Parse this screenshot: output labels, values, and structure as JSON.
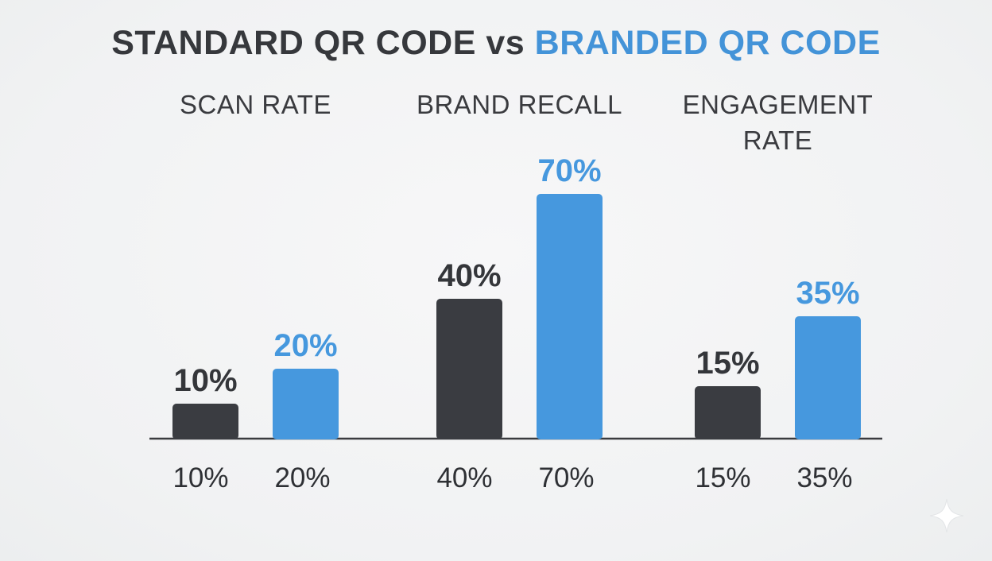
{
  "title": {
    "standard": "STANDARD QR CODE",
    "vs": "vs",
    "branded": "BRANDED QR CODE"
  },
  "colors": {
    "standard": "#3a3c41",
    "branded": "#4698de",
    "axis": "#3a3b3f",
    "text": "#3a3b3f"
  },
  "chart_data": {
    "type": "bar",
    "title": "STANDARD QR CODE vs BRANDED QR CODE",
    "categories": [
      "SCAN RATE",
      "BRAND RECALL",
      "ENGAGEMENT RATE"
    ],
    "category_lines": [
      [
        "SCAN RATE"
      ],
      [
        "BRAND RECALL"
      ],
      [
        "ENGAGEMENT",
        "RATE"
      ]
    ],
    "series": [
      {
        "name": "STANDARD QR CODE",
        "values": [
          10,
          40,
          15
        ]
      },
      {
        "name": "BRANDED QR CODE",
        "values": [
          20,
          70,
          35
        ]
      }
    ],
    "value_labels": [
      [
        "10%",
        "40%",
        "15%"
      ],
      [
        "20%",
        "70%",
        "35%"
      ]
    ],
    "unit": "%",
    "xlabel": "",
    "ylabel": "",
    "grid": false,
    "legend": "none"
  }
}
